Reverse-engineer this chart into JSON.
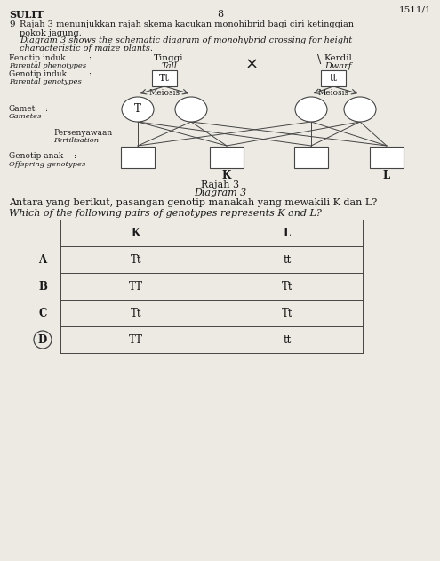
{
  "page_number": "1511/1",
  "page_num2": "8",
  "sulit": "SULIT",
  "question_num": "9",
  "malay_title_line1": "Rajah 3 menunjukkan rajah skema kacukan monohibrid bagi ciri ketinggian",
  "malay_title_line2": "pokok jagung.",
  "english_title_line1": "Diagram 3 shows the schematic diagram of monohybrid crossing for height",
  "english_title_line2": "characteristic of maize plants.",
  "fenotip_label1": "Fenotip induk",
  "fenotip_label1b": ":",
  "fenotip_label2": "Parental phenotypes",
  "tall1": "Tinggi",
  "tall2": "Tall",
  "cross_symbol": "×",
  "kerdil_bracket": "\\",
  "kerdil1": "Kerdil",
  "kerdil2": "Dwarf",
  "genotip_label1": "Genotip induk",
  "genotip_label1b": ":",
  "genotip_label2": "Parental genotypes",
  "tt_box1": "Tt",
  "tt_box2": "tt",
  "meiosis1": "Meiosis",
  "meiosis2": "Meiosis",
  "gamet_label1": "Gamet",
  "gamet_label1b": ":",
  "gamet_label2": "Gametes",
  "gamete_T": "T",
  "perseny_label1": "Persenyawaan",
  "perseny_label2": "Fertilisation",
  "genotip_anak1": "Genotip anak",
  "genotip_anak1b": ":",
  "genotip_anak2": "Offspring genotypes",
  "K_label": "K",
  "L_label": "L",
  "rajah_label": "Rajah 3",
  "diagram_label": "Diagram 3",
  "question_malay": "Antara yang berikut, pasangan genotip manakah yang mewakili K dan L?",
  "question_malay_bold": [
    "K",
    "L"
  ],
  "question_english": "Which of the following pairs of genotypes represents K and L?",
  "question_english_bold": [
    "K",
    "L"
  ],
  "table_headers": [
    "K",
    "L"
  ],
  "table_rows": [
    [
      "A",
      "Tt",
      "tt"
    ],
    [
      "B",
      "TT",
      "Tt"
    ],
    [
      "C",
      "Tt",
      "Tt"
    ],
    [
      "D",
      "TT",
      "tt"
    ]
  ],
  "answer": "D",
  "bg_color": "#edeae4",
  "line_color": "#444444",
  "text_color": "#1a1a1a"
}
